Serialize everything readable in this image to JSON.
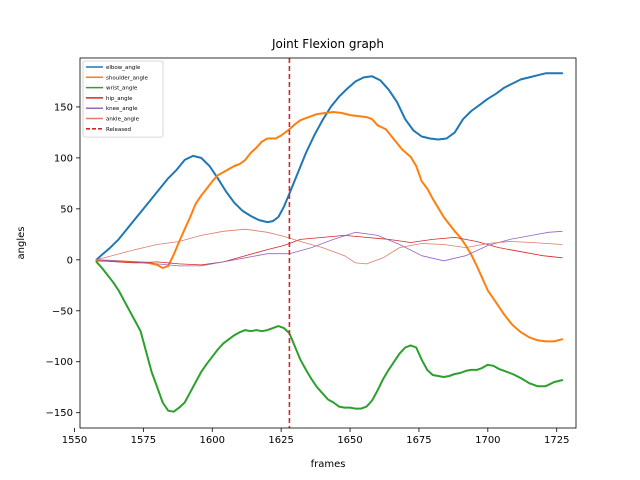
{
  "chart_data": {
    "type": "line",
    "title": "Joint Flexion graph",
    "xlabel": "frames",
    "ylabel": "angles",
    "xlim": [
      1552,
      1732
    ],
    "ylim": [
      -165,
      198
    ],
    "xticks": [
      1550,
      1575,
      1600,
      1625,
      1650,
      1675,
      1700,
      1725
    ],
    "yticks": [
      -150,
      -100,
      -50,
      0,
      50,
      100,
      150
    ],
    "grid": false,
    "legend_position": "top-left",
    "vline": {
      "x": 1628,
      "name": "Released",
      "color": "#d62728",
      "style": "dashed"
    },
    "series": [
      {
        "name": "elbow_angle",
        "color": "#1f77b4",
        "width": 2,
        "points": [
          [
            1558,
            0
          ],
          [
            1560,
            5
          ],
          [
            1563,
            12
          ],
          [
            1566,
            20
          ],
          [
            1569,
            30
          ],
          [
            1572,
            40
          ],
          [
            1575,
            50
          ],
          [
            1578,
            60
          ],
          [
            1581,
            70
          ],
          [
            1584,
            80
          ],
          [
            1587,
            88
          ],
          [
            1590,
            98
          ],
          [
            1593,
            102
          ],
          [
            1596,
            100
          ],
          [
            1599,
            92
          ],
          [
            1602,
            80
          ],
          [
            1605,
            67
          ],
          [
            1608,
            56
          ],
          [
            1611,
            48
          ],
          [
            1614,
            43
          ],
          [
            1617,
            39
          ],
          [
            1620,
            37
          ],
          [
            1622,
            38
          ],
          [
            1624,
            42
          ],
          [
            1626,
            52
          ],
          [
            1628,
            65
          ],
          [
            1631,
            85
          ],
          [
            1634,
            105
          ],
          [
            1637,
            122
          ],
          [
            1640,
            137
          ],
          [
            1643,
            150
          ],
          [
            1646,
            160
          ],
          [
            1649,
            168
          ],
          [
            1652,
            175
          ],
          [
            1655,
            179
          ],
          [
            1658,
            180
          ],
          [
            1661,
            176
          ],
          [
            1664,
            167
          ],
          [
            1667,
            155
          ],
          [
            1670,
            138
          ],
          [
            1673,
            127
          ],
          [
            1676,
            121
          ],
          [
            1679,
            119
          ],
          [
            1682,
            118
          ],
          [
            1685,
            119
          ],
          [
            1688,
            125
          ],
          [
            1691,
            138
          ],
          [
            1694,
            146
          ],
          [
            1697,
            152
          ],
          [
            1700,
            158
          ],
          [
            1703,
            163
          ],
          [
            1706,
            169
          ],
          [
            1709,
            173
          ],
          [
            1712,
            177
          ],
          [
            1715,
            179
          ],
          [
            1718,
            181
          ],
          [
            1721,
            183
          ],
          [
            1724,
            183
          ],
          [
            1727,
            183
          ]
        ]
      },
      {
        "name": "shoulder_angle",
        "color": "#ff7f0e",
        "width": 2,
        "points": [
          [
            1558,
            -1
          ],
          [
            1562,
            -1
          ],
          [
            1566,
            -1.5
          ],
          [
            1570,
            -2
          ],
          [
            1574,
            -2.5
          ],
          [
            1577,
            -3
          ],
          [
            1580,
            -5
          ],
          [
            1582,
            -8
          ],
          [
            1584,
            -6
          ],
          [
            1586,
            5
          ],
          [
            1588,
            18
          ],
          [
            1590,
            30
          ],
          [
            1592,
            42
          ],
          [
            1594,
            55
          ],
          [
            1596,
            63
          ],
          [
            1598,
            70
          ],
          [
            1600,
            77
          ],
          [
            1602,
            83
          ],
          [
            1604,
            86
          ],
          [
            1606,
            89
          ],
          [
            1608,
            92
          ],
          [
            1610,
            94
          ],
          [
            1612,
            98
          ],
          [
            1614,
            105
          ],
          [
            1616,
            110
          ],
          [
            1618,
            116
          ],
          [
            1620,
            119
          ],
          [
            1623,
            119
          ],
          [
            1625,
            122
          ],
          [
            1628,
            128
          ],
          [
            1630,
            133
          ],
          [
            1632,
            137
          ],
          [
            1635,
            140
          ],
          [
            1638,
            143
          ],
          [
            1641,
            144
          ],
          [
            1644,
            145
          ],
          [
            1647,
            144
          ],
          [
            1650,
            142
          ],
          [
            1653,
            141
          ],
          [
            1656,
            140
          ],
          [
            1658,
            138
          ],
          [
            1660,
            132
          ],
          [
            1663,
            128
          ],
          [
            1666,
            118
          ],
          [
            1669,
            108
          ],
          [
            1672,
            101
          ],
          [
            1674,
            92
          ],
          [
            1676,
            77
          ],
          [
            1678,
            70
          ],
          [
            1680,
            60
          ],
          [
            1682,
            51
          ],
          [
            1684,
            42
          ],
          [
            1686,
            35
          ],
          [
            1688,
            28
          ],
          [
            1690,
            22
          ],
          [
            1692,
            14
          ],
          [
            1694,
            5
          ],
          [
            1696,
            -6
          ],
          [
            1698,
            -18
          ],
          [
            1700,
            -30
          ],
          [
            1703,
            -42
          ],
          [
            1706,
            -54
          ],
          [
            1709,
            -64
          ],
          [
            1712,
            -71
          ],
          [
            1715,
            -76
          ],
          [
            1718,
            -79
          ],
          [
            1721,
            -80
          ],
          [
            1724,
            -80
          ],
          [
            1727,
            -78
          ]
        ]
      },
      {
        "name": "wrist_angle",
        "color": "#2ca02c",
        "width": 2,
        "points": [
          [
            1558,
            -2
          ],
          [
            1560,
            -8
          ],
          [
            1562,
            -15
          ],
          [
            1564,
            -22
          ],
          [
            1566,
            -30
          ],
          [
            1568,
            -40
          ],
          [
            1570,
            -50
          ],
          [
            1572,
            -60
          ],
          [
            1574,
            -70
          ],
          [
            1576,
            -90
          ],
          [
            1578,
            -110
          ],
          [
            1580,
            -125
          ],
          [
            1582,
            -140
          ],
          [
            1584,
            -148
          ],
          [
            1586,
            -149
          ],
          [
            1588,
            -145
          ],
          [
            1590,
            -140
          ],
          [
            1592,
            -130
          ],
          [
            1594,
            -120
          ],
          [
            1596,
            -110
          ],
          [
            1598,
            -102
          ],
          [
            1600,
            -95
          ],
          [
            1602,
            -88
          ],
          [
            1604,
            -82
          ],
          [
            1606,
            -78
          ],
          [
            1608,
            -74
          ],
          [
            1610,
            -71
          ],
          [
            1612,
            -69
          ],
          [
            1614,
            -70
          ],
          [
            1616,
            -69
          ],
          [
            1618,
            -70
          ],
          [
            1620,
            -69
          ],
          [
            1622,
            -67
          ],
          [
            1624,
            -65
          ],
          [
            1626,
            -67
          ],
          [
            1628,
            -72
          ],
          [
            1630,
            -85
          ],
          [
            1632,
            -98
          ],
          [
            1634,
            -108
          ],
          [
            1636,
            -117
          ],
          [
            1638,
            -125
          ],
          [
            1640,
            -131
          ],
          [
            1642,
            -137
          ],
          [
            1644,
            -140
          ],
          [
            1646,
            -144
          ],
          [
            1648,
            -145
          ],
          [
            1650,
            -145
          ],
          [
            1652,
            -146
          ],
          [
            1654,
            -146
          ],
          [
            1656,
            -144
          ],
          [
            1658,
            -138
          ],
          [
            1660,
            -128
          ],
          [
            1662,
            -117
          ],
          [
            1664,
            -108
          ],
          [
            1666,
            -100
          ],
          [
            1668,
            -92
          ],
          [
            1670,
            -86
          ],
          [
            1672,
            -84
          ],
          [
            1674,
            -86
          ],
          [
            1676,
            -98
          ],
          [
            1678,
            -108
          ],
          [
            1680,
            -113
          ],
          [
            1682,
            -114
          ],
          [
            1684,
            -115
          ],
          [
            1686,
            -114
          ],
          [
            1688,
            -112
          ],
          [
            1690,
            -111
          ],
          [
            1692,
            -109
          ],
          [
            1694,
            -108
          ],
          [
            1696,
            -108
          ],
          [
            1698,
            -106
          ],
          [
            1700,
            -103
          ],
          [
            1702,
            -104
          ],
          [
            1704,
            -107
          ],
          [
            1706,
            -109
          ],
          [
            1709,
            -112
          ],
          [
            1712,
            -116
          ],
          [
            1715,
            -121
          ],
          [
            1718,
            -124
          ],
          [
            1721,
            -124
          ],
          [
            1724,
            -120
          ],
          [
            1727,
            -118
          ]
        ]
      },
      {
        "name": "hip_angle",
        "color": "#d62728",
        "width": 0.8,
        "points": [
          [
            1558,
            0
          ],
          [
            1565,
            -2
          ],
          [
            1572,
            -3
          ],
          [
            1580,
            -2
          ],
          [
            1588,
            -4
          ],
          [
            1596,
            -5
          ],
          [
            1604,
            -2
          ],
          [
            1612,
            4
          ],
          [
            1620,
            10
          ],
          [
            1626,
            14
          ],
          [
            1632,
            20
          ],
          [
            1640,
            22
          ],
          [
            1648,
            24
          ],
          [
            1656,
            22
          ],
          [
            1664,
            20
          ],
          [
            1672,
            17
          ],
          [
            1680,
            20
          ],
          [
            1688,
            22
          ],
          [
            1696,
            18
          ],
          [
            1704,
            12
          ],
          [
            1712,
            8
          ],
          [
            1720,
            4
          ],
          [
            1727,
            2
          ]
        ]
      },
      {
        "name": "knee_angle",
        "color": "#9467bd",
        "width": 0.8,
        "points": [
          [
            1558,
            0
          ],
          [
            1565,
            -1
          ],
          [
            1572,
            -2
          ],
          [
            1580,
            -4
          ],
          [
            1588,
            -6
          ],
          [
            1596,
            -6
          ],
          [
            1604,
            -2
          ],
          [
            1612,
            2
          ],
          [
            1620,
            6
          ],
          [
            1628,
            6
          ],
          [
            1636,
            12
          ],
          [
            1644,
            20
          ],
          [
            1652,
            27
          ],
          [
            1660,
            24
          ],
          [
            1668,
            15
          ],
          [
            1676,
            4
          ],
          [
            1684,
            -1
          ],
          [
            1692,
            4
          ],
          [
            1700,
            14
          ],
          [
            1708,
            20
          ],
          [
            1716,
            24
          ],
          [
            1722,
            27
          ],
          [
            1727,
            28
          ]
        ]
      },
      {
        "name": "ankle_angle",
        "color": "#e07b6b",
        "width": 0.8,
        "points": [
          [
            1558,
            0
          ],
          [
            1565,
            5
          ],
          [
            1572,
            10
          ],
          [
            1580,
            15
          ],
          [
            1588,
            18
          ],
          [
            1596,
            24
          ],
          [
            1604,
            28
          ],
          [
            1612,
            30
          ],
          [
            1620,
            27
          ],
          [
            1626,
            23
          ],
          [
            1632,
            18
          ],
          [
            1640,
            12
          ],
          [
            1648,
            4
          ],
          [
            1652,
            -3
          ],
          [
            1656,
            -4
          ],
          [
            1662,
            2
          ],
          [
            1668,
            12
          ],
          [
            1676,
            16
          ],
          [
            1684,
            15
          ],
          [
            1692,
            12
          ],
          [
            1700,
            16
          ],
          [
            1708,
            18
          ],
          [
            1716,
            17
          ],
          [
            1727,
            15
          ]
        ]
      }
    ]
  }
}
